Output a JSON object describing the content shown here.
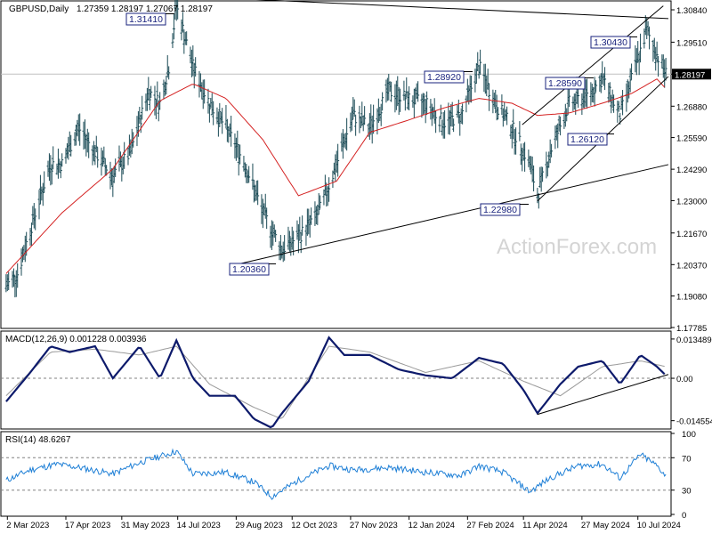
{
  "header": {
    "symbol": "GBPUSD,Daily",
    "ohlc": "1.27359 1.28197 1.27067 1.28197"
  },
  "watermark": "ActionForex.com",
  "chart_data": [
    {
      "type": "line",
      "panel": "price",
      "title": "GBPUSD,Daily",
      "y_ticks": [
        "1.30840",
        "1.29510",
        "1.28197",
        "1.26880",
        "1.25590",
        "1.24290",
        "1.23000",
        "1.21670",
        "1.20370",
        "1.19080",
        "1.17785"
      ],
      "ylim": [
        1.17785,
        1.3117
      ],
      "current_price": "1.28197",
      "x_ticks": [
        "2 Mar 2023",
        "17 Apr 2023",
        "31 May 2023",
        "14 Jul 2023",
        "29 Aug 2023",
        "12 Oct 2023",
        "27 Nov 2023",
        "12 Jan 2024",
        "27 Feb 2024",
        "11 Apr 2024",
        "27 May 2024",
        "10 Jul 2024"
      ],
      "series": [
        {
          "role": "price-bars",
          "x": [
            "2023-03-01",
            "2023-03-10",
            "2023-03-24",
            "2023-04-05",
            "2023-04-14",
            "2023-04-27",
            "2023-05-10",
            "2023-05-24",
            "2023-06-07",
            "2023-06-21",
            "2023-06-30",
            "2023-07-07",
            "2023-07-13",
            "2023-07-26",
            "2023-08-08",
            "2023-08-21",
            "2023-09-05",
            "2023-09-19",
            "2023-10-04",
            "2023-10-17",
            "2023-11-02",
            "2023-11-16",
            "2023-11-29",
            "2023-12-12",
            "2023-12-27",
            "2024-01-11",
            "2024-01-25",
            "2024-02-08",
            "2024-02-22",
            "2024-03-07",
            "2024-03-20",
            "2024-04-02",
            "2024-04-16",
            "2024-04-22",
            "2024-05-02",
            "2024-05-17",
            "2024-05-31",
            "2024-06-12",
            "2024-06-26",
            "2024-07-05",
            "2024-07-17",
            "2024-07-25",
            "2024-08-01"
          ],
          "values": [
            1.195,
            1.2,
            1.225,
            1.245,
            1.245,
            1.26,
            1.25,
            1.24,
            1.25,
            1.275,
            1.27,
            1.285,
            1.31,
            1.285,
            1.27,
            1.26,
            1.245,
            1.225,
            1.21,
            1.215,
            1.225,
            1.245,
            1.265,
            1.26,
            1.275,
            1.272,
            1.27,
            1.262,
            1.265,
            1.285,
            1.27,
            1.26,
            1.245,
            1.232,
            1.25,
            1.27,
            1.273,
            1.28,
            1.265,
            1.28,
            1.3,
            1.29,
            1.282
          ]
        },
        {
          "role": "moving-average",
          "x": [
            "2023-03-01",
            "2023-04-14",
            "2023-05-24",
            "2023-06-30",
            "2023-07-26",
            "2023-08-21",
            "2023-09-19",
            "2023-10-17",
            "2023-11-16",
            "2023-12-12",
            "2024-01-11",
            "2024-02-08",
            "2024-03-07",
            "2024-04-02",
            "2024-04-22",
            "2024-05-17",
            "2024-06-12",
            "2024-07-05",
            "2024-07-25",
            "2024-08-01"
          ],
          "values": [
            1.2,
            1.225,
            1.243,
            1.271,
            1.278,
            1.272,
            1.255,
            1.232,
            1.238,
            1.258,
            1.263,
            1.268,
            1.272,
            1.27,
            1.265,
            1.266,
            1.27,
            1.274,
            1.28,
            1.276
          ]
        }
      ],
      "annotations": [
        "1.31410",
        "1.30430",
        "1.28920",
        "1.28590",
        "1.26120",
        "1.22980",
        "1.20360"
      ],
      "colors": {
        "bars": "#1a4a55",
        "ma": "#d42020",
        "label_border": "#1a237e",
        "label_text": "#1a237e"
      }
    },
    {
      "type": "line",
      "panel": "macd",
      "title": "MACD(12,26,9) 0.001228 0.003936",
      "y_ticks": [
        "0.013489",
        "0.00",
        "-0.014554"
      ],
      "ylim": [
        -0.0168,
        0.0156
      ],
      "series": [
        {
          "role": "macd",
          "x": [
            "2023-03-01",
            "2023-03-20",
            "2023-04-05",
            "2023-04-20",
            "2023-05-10",
            "2023-05-24",
            "2023-06-14",
            "2023-06-30",
            "2023-07-13",
            "2023-07-26",
            "2023-08-08",
            "2023-08-28",
            "2023-09-12",
            "2023-09-26",
            "2023-10-04",
            "2023-10-25",
            "2023-11-10",
            "2023-11-22",
            "2023-12-12",
            "2024-01-04",
            "2024-01-25",
            "2024-02-15",
            "2024-03-07",
            "2024-03-26",
            "2024-04-11",
            "2024-04-22",
            "2024-05-10",
            "2024-05-24",
            "2024-06-12",
            "2024-06-26",
            "2024-07-12",
            "2024-07-25",
            "2024-08-01"
          ],
          "values": [
            -0.008,
            0.002,
            0.011,
            0.009,
            0.011,
            0.0,
            0.011,
            0.0,
            0.013,
            0.0,
            -0.006,
            -0.006,
            -0.014,
            -0.017,
            -0.012,
            -0.001,
            0.014,
            0.008,
            0.008,
            0.003,
            0.001,
            0.0,
            0.007,
            0.005,
            -0.004,
            -0.012,
            -0.002,
            0.004,
            0.006,
            -0.002,
            0.008,
            0.004,
            0.001
          ]
        },
        {
          "role": "signal",
          "x": [
            "2023-03-01",
            "2023-04-05",
            "2023-05-10",
            "2023-06-14",
            "2023-07-13",
            "2023-08-08",
            "2023-09-12",
            "2023-10-04",
            "2023-11-10",
            "2023-12-12",
            "2024-01-25",
            "2024-03-07",
            "2024-04-11",
            "2024-05-10",
            "2024-06-12",
            "2024-07-12",
            "2024-08-01"
          ],
          "values": [
            -0.006,
            0.009,
            0.01,
            0.008,
            0.011,
            -0.002,
            -0.01,
            -0.014,
            0.011,
            0.009,
            0.002,
            0.006,
            -0.001,
            -0.006,
            0.004,
            0.006,
            0.004
          ]
        }
      ]
    },
    {
      "type": "line",
      "panel": "rsi",
      "title": "RSI(14) 48.6267",
      "y_ticks": [
        "100",
        "70",
        "30",
        "0"
      ],
      "ylim": [
        0,
        100
      ],
      "levels": [
        70,
        30
      ],
      "series": [
        {
          "role": "rsi",
          "x": [
            "2023-03-01",
            "2023-03-20",
            "2023-04-10",
            "2023-04-27",
            "2023-05-24",
            "2023-06-14",
            "2023-07-13",
            "2023-07-26",
            "2023-08-21",
            "2023-09-12",
            "2023-09-26",
            "2023-10-17",
            "2023-11-10",
            "2023-11-29",
            "2023-12-27",
            "2024-01-25",
            "2024-02-22",
            "2024-03-07",
            "2024-03-26",
            "2024-04-16",
            "2024-05-02",
            "2024-05-24",
            "2024-06-12",
            "2024-06-26",
            "2024-07-12",
            "2024-07-25",
            "2024-08-01"
          ],
          "values": [
            42,
            55,
            62,
            58,
            50,
            64,
            78,
            50,
            52,
            40,
            22,
            42,
            60,
            55,
            58,
            52,
            48,
            60,
            52,
            28,
            45,
            60,
            62,
            45,
            74,
            60,
            48
          ]
        }
      ]
    }
  ]
}
